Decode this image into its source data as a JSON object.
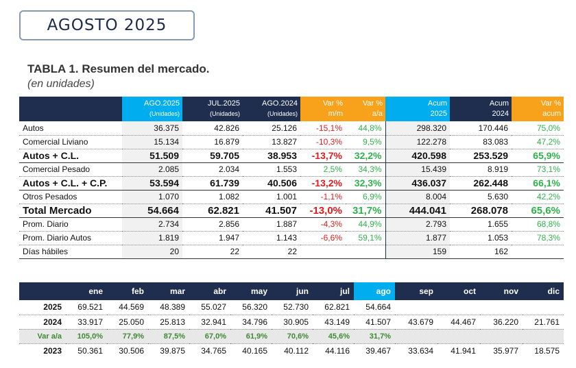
{
  "header": {
    "period": "AGOSTO 2025"
  },
  "table_title": "TABLA 1. Resumen del mercado.",
  "table_subtitle": "(en unidades)",
  "main": {
    "columns": [
      {
        "top": "AGO.2025",
        "bot": "(Unidades)"
      },
      {
        "top": "JUL.2025",
        "bot": "(Unidades)"
      },
      {
        "top": "AGO.2024",
        "bot": "(Unidades)"
      },
      {
        "top": "Var %",
        "bot": "m/m"
      },
      {
        "top": "Var %",
        "bot": "a/a"
      },
      {
        "top": "Acum",
        "bot": "2025"
      },
      {
        "top": "Acum",
        "bot": "2024"
      },
      {
        "top": "Var %",
        "bot": "acum"
      }
    ],
    "rows": [
      {
        "label": "Autos",
        "cells": [
          "36.375",
          "42.826",
          "25.126",
          "-15,1%",
          "44,8%",
          "298.320",
          "170.446",
          "75,0%"
        ]
      },
      {
        "label": "Comercial Liviano",
        "cells": [
          "15.134",
          "16.879",
          "13.827",
          "-10,3%",
          "9,5%",
          "122.278",
          "83.083",
          "47,2%"
        ]
      },
      {
        "label": "Autos + C.L.",
        "cells": [
          "51.509",
          "59.705",
          "38.953",
          "-13,7%",
          "32,2%",
          "420.598",
          "253.529",
          "65,9%"
        ]
      },
      {
        "label": "Comercial Pesado",
        "cells": [
          "2.085",
          "2.034",
          "1.553",
          "2,5%",
          "34,3%",
          "15.439",
          "8.919",
          "73,1%"
        ]
      },
      {
        "label": "Autos + C.L. + C.P.",
        "cells": [
          "53.594",
          "61.739",
          "40.506",
          "-13,2%",
          "32,3%",
          "436.037",
          "262.448",
          "66,1%"
        ]
      },
      {
        "label": "Otros Pesados",
        "cells": [
          "1.070",
          "1.082",
          "1.001",
          "-1,1%",
          "6,9%",
          "8.004",
          "5.630",
          "42,2%"
        ]
      },
      {
        "label": "Total Mercado",
        "cells": [
          "54.664",
          "62.821",
          "41.507",
          "-13,0%",
          "31,7%",
          "444.041",
          "268.078",
          "65,6%"
        ]
      },
      {
        "label": "Prom. Diario",
        "cells": [
          "2.734",
          "2.856",
          "1.887",
          "-4,3%",
          "44,9%",
          "2.793",
          "1.655",
          "68,8%"
        ]
      },
      {
        "label": "Prom. Diario Autos",
        "cells": [
          "1.819",
          "1.947",
          "1.143",
          "-6,6%",
          "59,1%",
          "1.877",
          "1.053",
          "78,3%"
        ]
      },
      {
        "label": "Días hábiles",
        "cells": [
          "20",
          "22",
          "22",
          "",
          "",
          "159",
          "162",
          ""
        ]
      }
    ]
  },
  "monthly": {
    "months": [
      "ene",
      "feb",
      "mar",
      "abr",
      "may",
      "jun",
      "jul",
      "ago",
      "sep",
      "oct",
      "nov",
      "dic"
    ],
    "rows": [
      {
        "label": "2025",
        "cells": [
          "69.521",
          "44.569",
          "48.389",
          "55.027",
          "56.320",
          "52.730",
          "62.821",
          "54.664",
          "",
          "",
          "",
          ""
        ]
      },
      {
        "label": "2024",
        "cells": [
          "33.917",
          "25.050",
          "25.813",
          "32.941",
          "34.796",
          "30.905",
          "43.149",
          "41.507",
          "43.679",
          "44.467",
          "36.220",
          "21.761"
        ]
      },
      {
        "label": "Var a/a",
        "cells": [
          "105,0%",
          "77,9%",
          "87,5%",
          "67,0%",
          "61,9%",
          "70,6%",
          "45,6%",
          "31,7%",
          "",
          "",
          "",
          ""
        ]
      },
      {
        "label": "2023",
        "cells": [
          "50.361",
          "30.506",
          "39.875",
          "34.765",
          "40.165",
          "40.112",
          "44.116",
          "39.467",
          "33.634",
          "41.941",
          "35.977",
          "18.575"
        ]
      }
    ]
  },
  "colors": {
    "navy": "#1f2d4e",
    "cyan": "#00aef0",
    "orange": "#f8a21b",
    "negative": "#e01b1b",
    "positive": "#2eb24a"
  }
}
